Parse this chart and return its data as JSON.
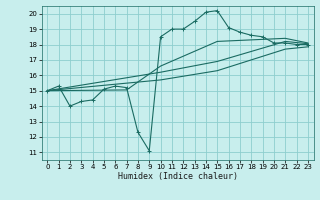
{
  "xlabel": "Humidex (Indice chaleur)",
  "bg_color": "#c8eeed",
  "grid_color": "#8ecece",
  "line_color": "#1a6b62",
  "xlim": [
    -0.5,
    23.5
  ],
  "ylim": [
    10.5,
    20.5
  ],
  "xticks": [
    0,
    1,
    2,
    3,
    4,
    5,
    6,
    7,
    8,
    9,
    10,
    11,
    12,
    13,
    14,
    15,
    16,
    17,
    18,
    19,
    20,
    21,
    22,
    23
  ],
  "yticks": [
    11,
    12,
    13,
    14,
    15,
    16,
    17,
    18,
    19,
    20
  ],
  "series1_x": [
    0,
    1,
    2,
    3,
    4,
    5,
    6,
    7,
    8,
    9,
    10,
    11,
    12,
    13,
    14,
    15,
    16,
    17,
    18,
    19,
    20,
    21,
    22,
    23
  ],
  "series1_y": [
    15.0,
    15.3,
    14.0,
    14.3,
    14.4,
    15.1,
    15.3,
    15.2,
    12.3,
    11.1,
    18.5,
    19.0,
    19.0,
    19.5,
    20.1,
    20.2,
    19.1,
    18.8,
    18.6,
    18.5,
    18.1,
    18.1,
    18.0,
    18.0
  ],
  "trend1_x": [
    0,
    10,
    15,
    21,
    23
  ],
  "trend1_y": [
    15.0,
    16.2,
    16.9,
    18.2,
    18.05
  ],
  "trend2_x": [
    0,
    10,
    15,
    21,
    23
  ],
  "trend2_y": [
    15.0,
    15.7,
    16.3,
    17.7,
    17.85
  ],
  "trend3_x": [
    0,
    7,
    10,
    15,
    21,
    23
  ],
  "trend3_y": [
    15.0,
    15.05,
    16.6,
    18.2,
    18.4,
    18.1
  ]
}
